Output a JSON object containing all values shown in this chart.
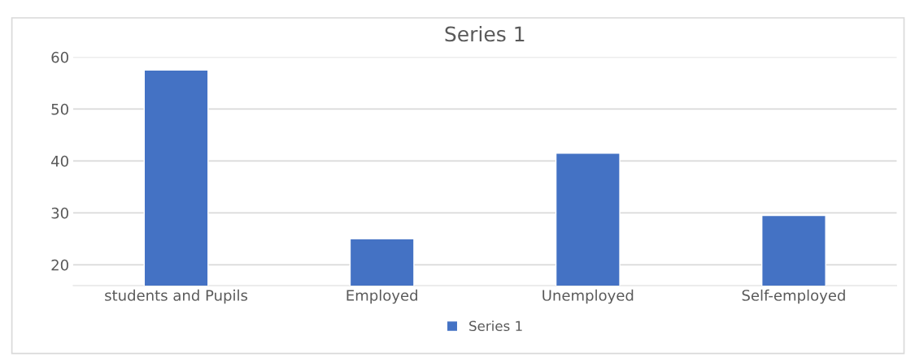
{
  "chart_data": {
    "type": "bar",
    "title": "Series 1",
    "categories": [
      "students and Pupils",
      "Employed",
      "Unemployed",
      "Self-employed"
    ],
    "series": [
      {
        "name": "Series 1",
        "color": "#4472c4",
        "values": [
          57.5,
          25,
          41.5,
          29.5
        ]
      }
    ],
    "ylim": [
      16,
      60
    ],
    "yticks": [
      20,
      30,
      40,
      50,
      60
    ],
    "grid": "y",
    "legend": "bottom"
  }
}
